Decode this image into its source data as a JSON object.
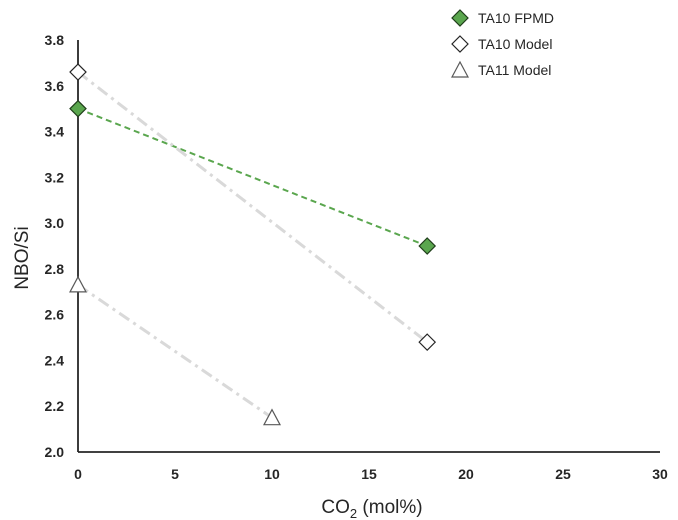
{
  "chart_data": {
    "type": "scatter",
    "title": "",
    "xlabel": {
      "main": "CO",
      "sub": "2",
      "unit": " (mol%)"
    },
    "ylabel": "NBO/Si",
    "xlim": [
      0,
      30
    ],
    "ylim": [
      2.0,
      3.8
    ],
    "xticks": [
      0,
      5,
      10,
      15,
      20,
      25,
      30
    ],
    "xtick_labels": [
      "0",
      "5",
      "10",
      "15",
      "20",
      "25",
      "30"
    ],
    "yticks": [
      2.0,
      2.2,
      2.4,
      2.6,
      2.8,
      3.0,
      3.2,
      3.4,
      3.6,
      3.8
    ],
    "ytick_labels": [
      "2.0",
      "2.2",
      "2.4",
      "2.6",
      "2.8",
      "3.0",
      "3.2",
      "3.4",
      "3.6",
      "3.8"
    ],
    "grid": false,
    "legend_position": "top-right",
    "series": [
      {
        "name": "TA10 FPMD",
        "marker": "diamond",
        "fill": "#5aa64e",
        "stroke": "#1f3d1a",
        "line_color": "#5aa64e",
        "line_style": "dashed",
        "x": [
          0,
          18
        ],
        "y": [
          3.5,
          2.9
        ]
      },
      {
        "name": "TA10 Model",
        "marker": "diamond",
        "fill": "#ffffff",
        "stroke": "#262626",
        "line_color": "#d9d9d9",
        "line_style": "dashdot",
        "x": [
          0,
          18
        ],
        "y": [
          3.66,
          2.48
        ]
      },
      {
        "name": "TA11 Model",
        "marker": "triangle",
        "fill": "#ffffff",
        "stroke": "#595959",
        "line_color": "#d9d9d9",
        "line_style": "dashdot",
        "x": [
          0,
          10
        ],
        "y": [
          2.73,
          2.15
        ]
      }
    ]
  }
}
